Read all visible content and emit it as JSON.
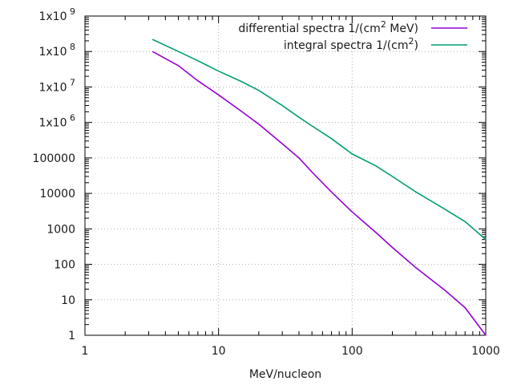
{
  "chart_data": {
    "type": "line",
    "xscale": "log",
    "yscale": "log",
    "xlim": [
      1,
      1000
    ],
    "ylim": [
      1,
      1000000000
    ],
    "xlabel": "MeV/nucleon",
    "ylabel": "",
    "title": "",
    "grid": true,
    "legend_position": "top-right",
    "x_ticks": [
      {
        "value": 1,
        "label": "1"
      },
      {
        "value": 10,
        "label": "10"
      },
      {
        "value": 100,
        "label": "100"
      },
      {
        "value": 1000,
        "label": "1000"
      }
    ],
    "y_ticks": [
      {
        "value": 1,
        "label": "1"
      },
      {
        "value": 10,
        "label": "10"
      },
      {
        "value": 100,
        "label": "100"
      },
      {
        "value": 1000,
        "label": "1000"
      },
      {
        "value": 10000,
        "label": "10000"
      },
      {
        "value": 100000,
        "label": "100000"
      },
      {
        "value": 1000000,
        "label": "1x10",
        "sup": "6"
      },
      {
        "value": 10000000,
        "label": "1x10",
        "sup": "7"
      },
      {
        "value": 100000000,
        "label": "1x10",
        "sup": "8"
      },
      {
        "value": 1000000000,
        "label": "1x10",
        "sup": "9"
      }
    ],
    "series": [
      {
        "name": "differential spectra 1/(cm",
        "name_sup": "2",
        "name_suffix": " MeV)",
        "color": "#9400d3",
        "x": [
          3.2,
          5,
          7,
          10,
          15,
          20,
          30,
          40,
          50,
          70,
          100,
          150,
          200,
          300,
          500,
          700,
          1000
        ],
        "y": [
          100000000,
          40000000,
          15000000,
          6000000,
          2000000,
          900000,
          250000,
          100000,
          40000,
          11000,
          3000,
          800,
          300,
          80,
          18,
          6,
          1
        ]
      },
      {
        "name": "integral spectra 1/(cm",
        "name_sup": "2",
        "name_suffix": ")",
        "color": "#009e73",
        "x": [
          3.2,
          5,
          7,
          10,
          15,
          20,
          30,
          40,
          50,
          70,
          100,
          150,
          200,
          300,
          500,
          700,
          1000
        ],
        "y": [
          220000000,
          100000000,
          55000000,
          28000000,
          14000000,
          8000000,
          3000000,
          1400000,
          800000,
          350000,
          130000,
          60000,
          30000,
          11000,
          3500,
          1600,
          500
        ]
      }
    ]
  }
}
